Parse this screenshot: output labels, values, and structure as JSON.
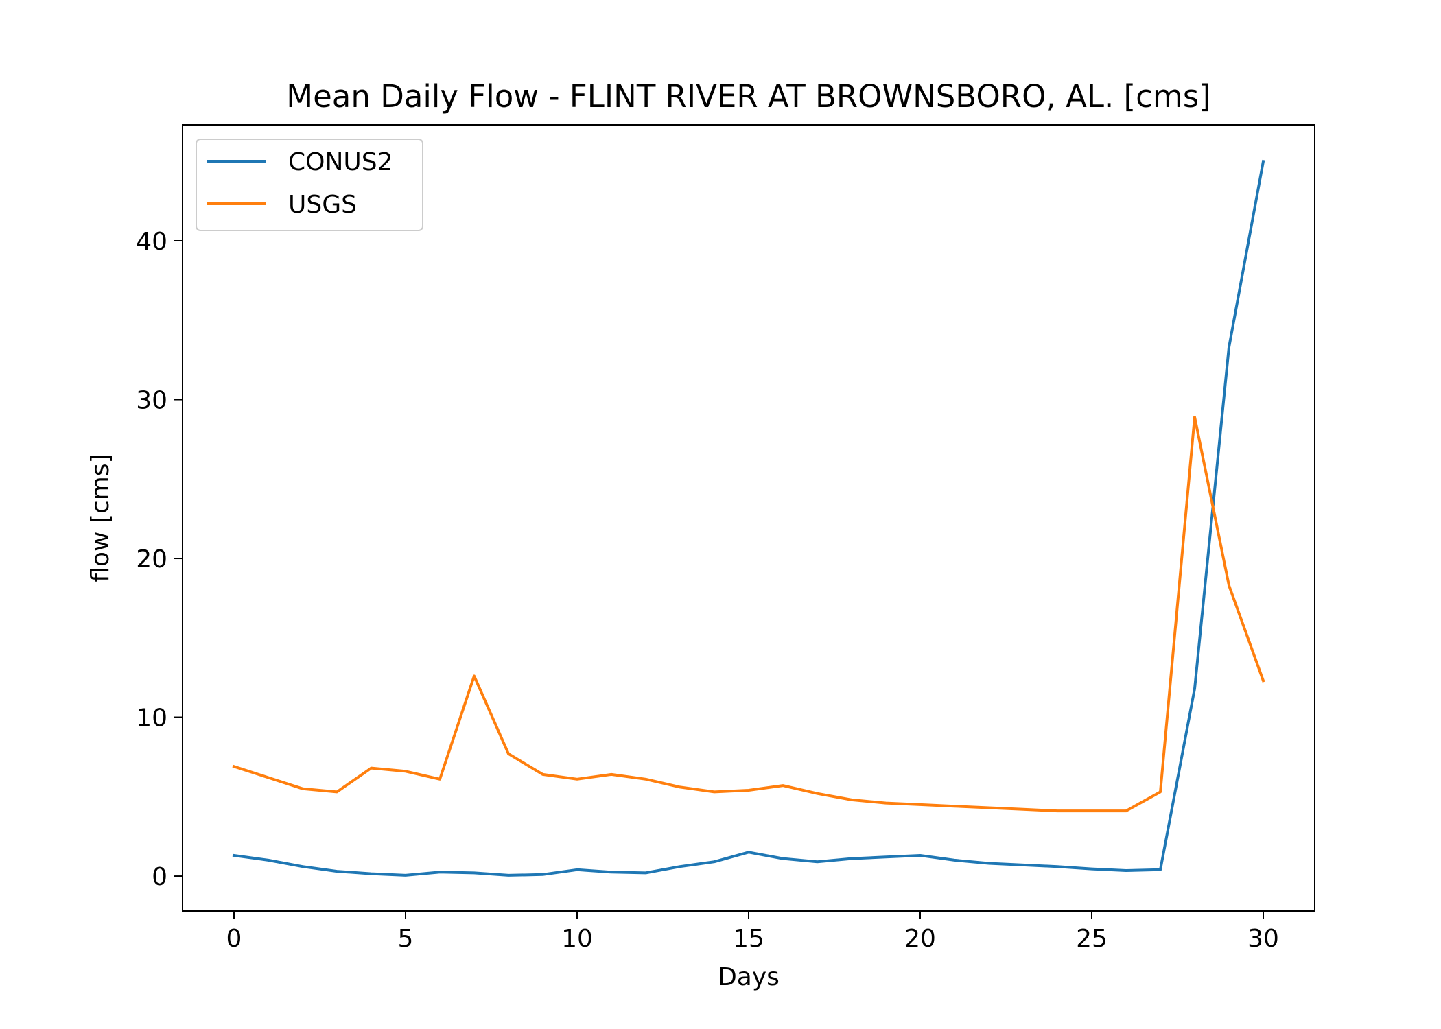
{
  "chart_data": {
    "type": "line",
    "title": "Mean Daily Flow - FLINT RIVER AT BROWNSBORO, AL. [cms]",
    "xlabel": "Days",
    "ylabel": "flow [cms]",
    "xlim": [
      -1.5,
      31.5
    ],
    "ylim": [
      -2.2,
      47.3
    ],
    "xticks": [
      0,
      5,
      10,
      15,
      20,
      25,
      30
    ],
    "yticks": [
      0,
      10,
      20,
      30,
      40
    ],
    "grid": false,
    "legend_position": "top-left",
    "x": [
      0,
      1,
      2,
      3,
      4,
      5,
      6,
      7,
      8,
      9,
      10,
      11,
      12,
      13,
      14,
      15,
      16,
      17,
      18,
      19,
      20,
      21,
      22,
      23,
      24,
      25,
      26,
      27,
      28,
      29,
      30
    ],
    "series": [
      {
        "name": "CONUS2",
        "color": "#1f77b4",
        "values": [
          1.3,
          1.0,
          0.6,
          0.3,
          0.15,
          0.05,
          0.25,
          0.2,
          0.05,
          0.1,
          0.4,
          0.25,
          0.2,
          0.6,
          0.9,
          1.5,
          1.1,
          0.9,
          1.1,
          1.2,
          1.3,
          1.0,
          0.8,
          0.7,
          0.6,
          0.45,
          0.35,
          0.4,
          11.8,
          33.3,
          45.0
        ]
      },
      {
        "name": "USGS",
        "color": "#ff7f0e",
        "values": [
          6.9,
          6.2,
          5.5,
          5.3,
          6.8,
          6.6,
          6.1,
          12.6,
          7.7,
          6.4,
          6.1,
          6.4,
          6.1,
          5.6,
          5.3,
          5.4,
          5.7,
          5.2,
          4.8,
          4.6,
          4.5,
          4.4,
          4.3,
          4.2,
          4.1,
          4.1,
          4.1,
          5.3,
          28.9,
          18.3,
          12.3
        ]
      }
    ]
  }
}
